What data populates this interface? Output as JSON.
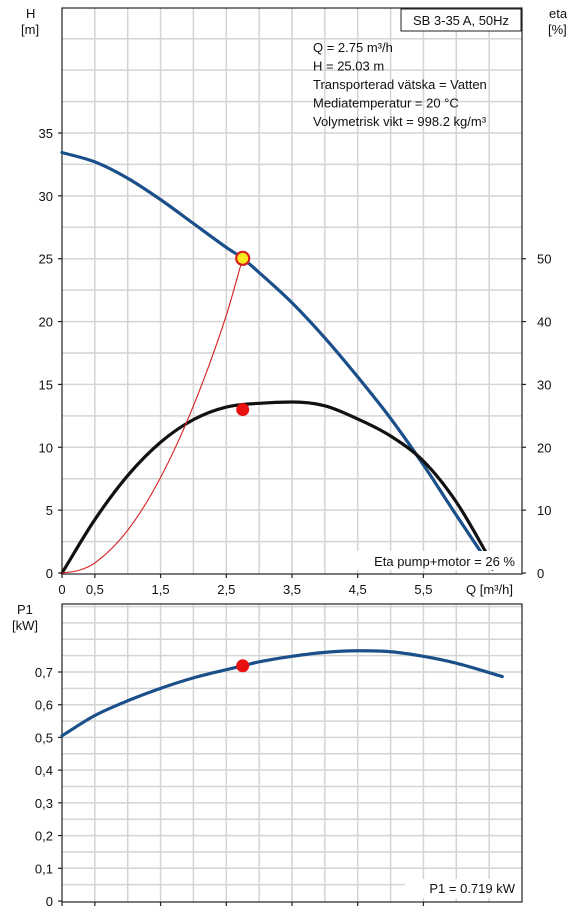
{
  "chart_data": [
    {
      "type": "line",
      "title": "SB 3-35 A, 50Hz",
      "y_label_top": "H",
      "y_label_unit": "[m]",
      "y2_label_top": "eta",
      "y2_label_unit": "[%]",
      "xlabel": "Q [m³/h]",
      "xlim": [
        0,
        7.0
      ],
      "ylim": [
        0,
        35
      ],
      "y2lim": [
        0,
        70
      ],
      "x_ticks": [
        "0",
        "0,5",
        "1,5",
        "2,5",
        "3,5",
        "4,5",
        "5,5",
        "Q [m³/h]"
      ],
      "x_tick_values": [
        0,
        0.5,
        1.5,
        2.5,
        3.5,
        4.5,
        5.5,
        7.0
      ],
      "y_ticks": [
        "0",
        "5",
        "10",
        "15",
        "20",
        "25",
        "30",
        "35"
      ],
      "y_tick_values": [
        0,
        5,
        10,
        15,
        20,
        25,
        30,
        35
      ],
      "y2_ticks": [
        "0",
        "10",
        "20",
        "30",
        "40",
        "50"
      ],
      "y2_tick_values": [
        0,
        10,
        20,
        30,
        40,
        50
      ],
      "info_lines": [
        "Q = 2.75 m³/h",
        "H = 25.03 m",
        "Transporterad vätska = Vatten",
        "Mediatemperatur = 20 °C",
        "Volymetrisk vikt = 998.2 kg/m³"
      ],
      "footer_text": "Eta pump+motor = 26 %",
      "grid": true,
      "series": [
        {
          "id": "head",
          "color": "#1b4f8a",
          "x": [
            0,
            0.5,
            1.0,
            1.5,
            2.0,
            2.5,
            2.75,
            3.0,
            3.5,
            4.0,
            4.5,
            5.0,
            5.5,
            6.0,
            6.55
          ],
          "values": [
            33.45,
            32.7,
            31.4,
            29.7,
            27.8,
            25.9,
            25.03,
            23.9,
            21.5,
            18.7,
            15.6,
            12.3,
            8.6,
            4.6,
            0.3
          ]
        },
        {
          "id": "eta",
          "color": "#111111",
          "axis": "y2",
          "x": [
            0,
            0.5,
            1.0,
            1.5,
            2.0,
            2.5,
            3.0,
            3.5,
            4.0,
            4.5,
            5.0,
            5.5,
            6.0,
            6.55
          ],
          "values": [
            0,
            8.5,
            15.5,
            20.8,
            24.4,
            26.4,
            27.0,
            27.2,
            26.6,
            24.5,
            21.8,
            17.8,
            11.3,
            1.5
          ]
        },
        {
          "id": "system",
          "color": "#d62020",
          "x": [
            0,
            0.25,
            0.5,
            1.0,
            1.5,
            2.0,
            2.5,
            2.75
          ],
          "values": [
            0,
            0.2,
            0.8,
            3.4,
            7.6,
            13.3,
            20.5,
            25.03
          ]
        }
      ],
      "operating_points": [
        {
          "x": 2.75,
          "y": 25.03,
          "axis": "y",
          "fill": "#f8e71c",
          "stroke": "#d62020"
        },
        {
          "x": 2.75,
          "y": 26,
          "axis": "y2",
          "fill": "#e81010",
          "stroke": "#e81010"
        }
      ]
    },
    {
      "type": "line",
      "y_label_top": "P1",
      "y_label_unit": "[kW]",
      "xlim": [
        0,
        7.0
      ],
      "ylim": [
        0,
        0.8
      ],
      "y_ticks": [
        "0",
        "0,1",
        "0,2",
        "0,3",
        "0,4",
        "0,5",
        "0,6",
        "0,7"
      ],
      "y_tick_values": [
        0,
        0.1,
        0.2,
        0.3,
        0.4,
        0.5,
        0.6,
        0.7
      ],
      "footer_text": "P1 = 0.719 kW",
      "grid": true,
      "series": [
        {
          "id": "power",
          "color": "#1b4f8a",
          "x": [
            0,
            0.5,
            1.0,
            1.5,
            2.0,
            2.5,
            2.75,
            3.0,
            3.5,
            4.0,
            4.5,
            5.0,
            5.5,
            6.0,
            6.7
          ],
          "values": [
            0.505,
            0.567,
            0.612,
            0.65,
            0.682,
            0.707,
            0.719,
            0.731,
            0.748,
            0.76,
            0.765,
            0.762,
            0.748,
            0.727,
            0.686
          ]
        }
      ],
      "operating_points": [
        {
          "x": 2.75,
          "y": 0.719,
          "axis": "y",
          "fill": "#e81010",
          "stroke": "#e81010"
        }
      ]
    }
  ]
}
